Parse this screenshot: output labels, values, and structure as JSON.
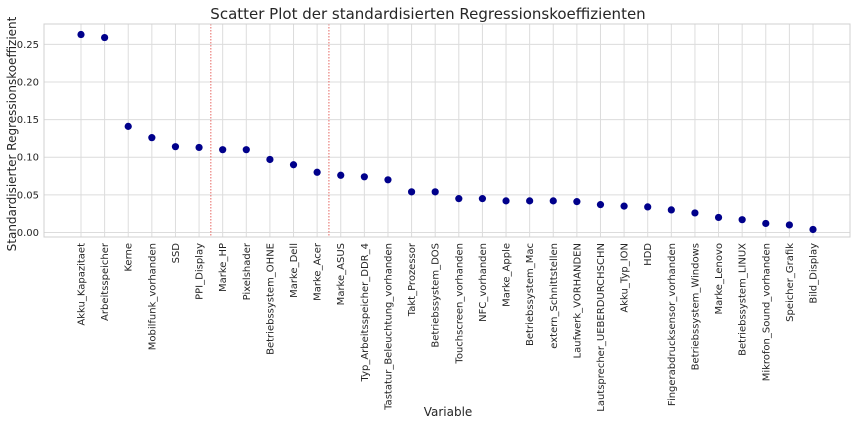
{
  "chart_data": {
    "type": "scatter",
    "title": "Scatter Plot der standardisierten Regressionskoeffizienten",
    "xlabel": "Variable",
    "ylabel": "Standardisierter Regressionskoeffizient",
    "ylim": [
      -0.006,
      0.277
    ],
    "yticks": [
      0.0,
      0.05,
      0.1,
      0.15,
      0.2,
      0.25
    ],
    "ytick_labels": [
      "0.00",
      "0.05",
      "0.10",
      "0.15",
      "0.20",
      "0.25"
    ],
    "grid": true,
    "marker_color": "#00008b",
    "vline_color": "#e0403a",
    "vlines_between": [
      [
        5,
        6
      ],
      [
        10,
        11
      ]
    ],
    "categories": [
      "Akku_Kapazitaet",
      "Arbeitsspeicher",
      "Kerne",
      "Mobilfunk_vorhanden",
      "SSD",
      "PPI_Display",
      "Marke_HP",
      "Pixelshader",
      "Betriebssystem_OHNE",
      "Marke_Dell",
      "Marke_Acer",
      "Marke_ASUS",
      "Typ_Arbeitsspeicher_DDR_4",
      "Tastatur_Beleuchtung_vorhanden",
      "Takt_Prozessor",
      "Betriebssystem_DOS",
      "Touchscreen_vorhanden",
      "NFC_vorhanden",
      "Marke_Apple",
      "Betriebssystem_Mac",
      "extern_Schnittstellen",
      "Laufwerk_VORHANDEN",
      "Lautsprecher_UEBERDURCHSCHN",
      "Akku_Typ_ION",
      "HDD",
      "Fingerabdrucksensor_vorhanden",
      "Betriebssystem_Windows",
      "Marke_Lenovo",
      "Betriebssystem_LINUX",
      "Mikrofon_Sound_vorhanden",
      "Speicher_Grafik",
      "Bild_Display"
    ],
    "values": [
      0.263,
      0.259,
      0.141,
      0.126,
      0.114,
      0.113,
      0.11,
      0.11,
      0.097,
      0.09,
      0.08,
      0.076,
      0.074,
      0.07,
      0.054,
      0.054,
      0.045,
      0.045,
      0.042,
      0.042,
      0.042,
      0.041,
      0.037,
      0.035,
      0.034,
      0.03,
      0.026,
      0.02,
      0.017,
      0.012,
      0.01,
      0.004
    ]
  }
}
